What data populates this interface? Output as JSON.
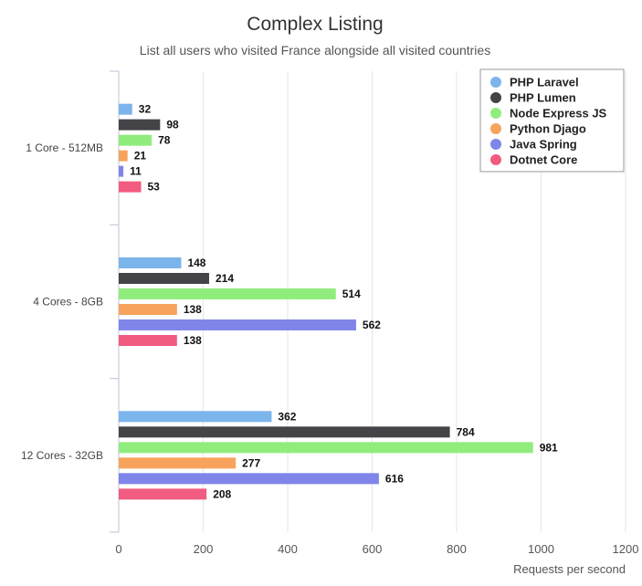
{
  "chart_data": {
    "type": "bar",
    "orientation": "horizontal",
    "title": "Complex Listing",
    "subtitle": "List all users who visited France alongside all visited countries",
    "xlabel": "Requests per second",
    "ylabel": "",
    "xlim": [
      0,
      1200
    ],
    "xticks": [
      0,
      200,
      400,
      600,
      800,
      1000,
      1200
    ],
    "grid": true,
    "legend_position": "top-right",
    "categories": [
      "1 Core - 512MB",
      "4 Cores - 8GB",
      "12 Cores - 32GB"
    ],
    "series": [
      {
        "name": "PHP Laravel",
        "color": "#7cb5ec",
        "values": [
          32,
          148,
          362
        ]
      },
      {
        "name": "PHP Lumen",
        "color": "#434348",
        "values": [
          98,
          214,
          784
        ]
      },
      {
        "name": "Node Express JS",
        "color": "#90ed7d",
        "values": [
          78,
          514,
          981
        ]
      },
      {
        "name": "Python Djago",
        "color": "#f7a35c",
        "values": [
          21,
          138,
          277
        ]
      },
      {
        "name": "Java Spring",
        "color": "#8085e9",
        "values": [
          11,
          562,
          616
        ]
      },
      {
        "name": "Dotnet Core",
        "color": "#f15c80",
        "values": [
          53,
          138,
          208
        ]
      }
    ]
  }
}
